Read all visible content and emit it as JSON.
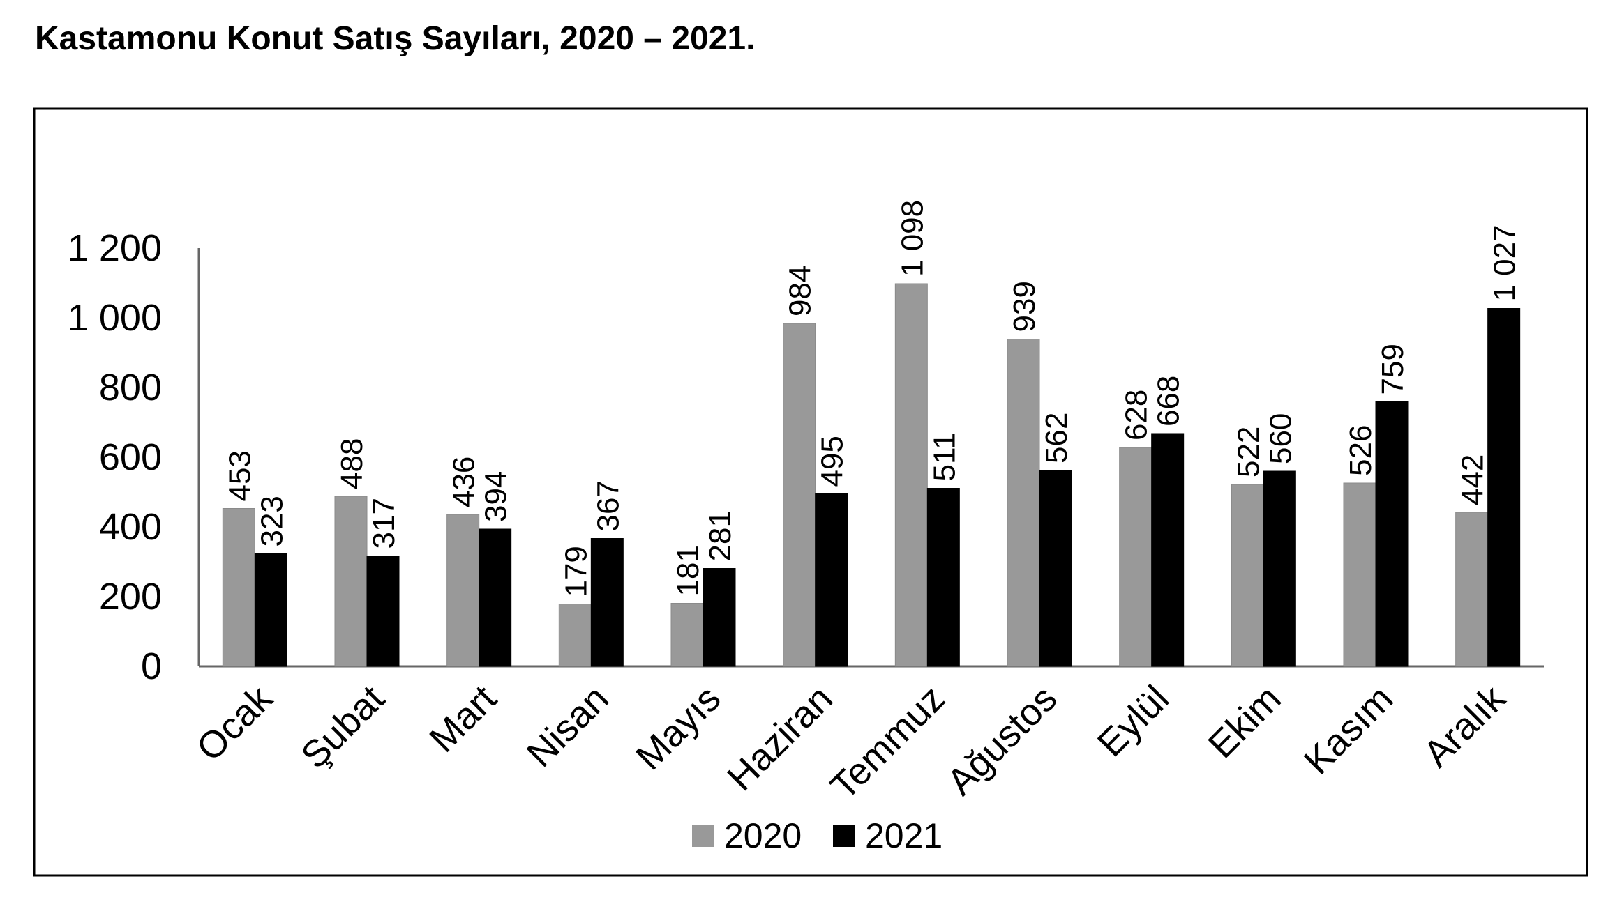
{
  "title": "Kastamonu Konut Satış Sayıları, 2020 – 2021.",
  "chart_data": {
    "type": "bar",
    "title": "Kastamonu Konut Satış Sayıları, 2020 – 2021.",
    "xlabel": "",
    "ylabel": "",
    "ylim": [
      0,
      1200
    ],
    "yticks": [
      0,
      200,
      400,
      600,
      800,
      1000,
      1200
    ],
    "ytick_labels": [
      "0",
      "200",
      "400",
      "600",
      "800",
      "1 000",
      "1 200"
    ],
    "categories": [
      "Ocak",
      "Şubat",
      "Mart",
      "Nisan",
      "Mayıs",
      "Haziran",
      "Temmuz",
      "Ağustos",
      "Eylül",
      "Ekim",
      "Kasım",
      "Aralık"
    ],
    "series": [
      {
        "name": "2020",
        "color": "#999999",
        "values": [
          453,
          488,
          436,
          179,
          181,
          984,
          1098,
          939,
          628,
          522,
          526,
          442
        ],
        "labels": [
          "453",
          "488",
          "436",
          "179",
          "181",
          "984",
          "1 098",
          "939",
          "628",
          "522",
          "526",
          "442"
        ]
      },
      {
        "name": "2021",
        "color": "#000000",
        "values": [
          323,
          317,
          394,
          367,
          281,
          495,
          511,
          562,
          668,
          560,
          759,
          1027
        ],
        "labels": [
          "323",
          "317",
          "394",
          "367",
          "281",
          "495",
          "511",
          "562",
          "668",
          "560",
          "759",
          "1 027"
        ]
      }
    ],
    "grid": false,
    "legend": "bottom-center"
  }
}
